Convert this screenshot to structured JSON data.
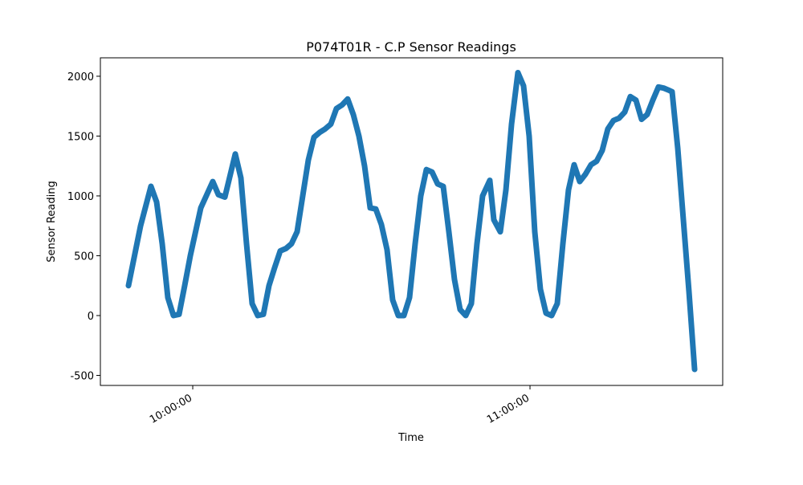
{
  "chart_data": {
    "type": "line",
    "title": "P074T01R - C.P Sensor Readings",
    "x_label": "Time",
    "y_label": "Sensor Reading",
    "x": [
      "09:48:34",
      "09:50:43",
      "09:52:34",
      "09:53:34",
      "09:54:34",
      "09:55:34",
      "09:56:34",
      "09:57:34",
      "09:58:34",
      "09:59:34",
      "10:01:26",
      "10:03:34",
      "10:04:34",
      "10:05:43",
      "10:07:34",
      "10:08:34",
      "10:09:34",
      "10:10:34",
      "10:11:34",
      "10:12:34",
      "10:13:34",
      "10:14:34",
      "10:15:34",
      "10:16:34",
      "10:17:34",
      "10:18:34",
      "10:19:34",
      "10:20:34",
      "10:21:34",
      "10:22:34",
      "10:23:34",
      "10:24:34",
      "10:25:34",
      "10:26:34",
      "10:27:34",
      "10:28:34",
      "10:29:34",
      "10:30:34",
      "10:31:34",
      "10:32:34",
      "10:33:34",
      "10:34:34",
      "10:35:34",
      "10:36:34",
      "10:37:34",
      "10:38:34",
      "10:39:34",
      "10:40:34",
      "10:41:34",
      "10:42:34",
      "10:43:34",
      "10:44:34",
      "10:45:34",
      "10:46:34",
      "10:47:34",
      "10:48:34",
      "10:49:34",
      "10:50:34",
      "10:51:34",
      "10:52:51",
      "10:53:34",
      "10:54:43",
      "10:55:43",
      "10:56:43",
      "10:57:51",
      "10:58:51",
      "10:59:51",
      "11:00:51",
      "11:01:51",
      "11:02:51",
      "11:03:51",
      "11:04:51",
      "11:05:51",
      "11:06:51",
      "11:07:51",
      "11:08:51",
      "11:09:51",
      "11:10:51",
      "11:11:51",
      "11:12:51",
      "11:13:51",
      "11:14:51",
      "11:15:51",
      "11:16:51",
      "11:17:51",
      "11:18:51",
      "11:19:51",
      "11:20:51",
      "11:21:51",
      "11:22:51",
      "11:23:51",
      "11:24:51",
      "11:25:17",
      "11:26:17",
      "11:27:17",
      "11:28:17",
      "11:29:17"
    ],
    "series": [
      {
        "name": "C.P",
        "color": "#1f77b4",
        "values": [
          250,
          750,
          1080,
          950,
          600,
          150,
          0,
          10,
          250,
          500,
          900,
          1120,
          1010,
          990,
          1350,
          1150,
          600,
          100,
          0,
          10,
          250,
          400,
          540,
          560,
          600,
          700,
          1000,
          1300,
          1490,
          1530,
          1560,
          1600,
          1730,
          1760,
          1810,
          1680,
          1500,
          1250,
          900,
          890,
          760,
          550,
          130,
          0,
          0,
          150,
          600,
          1000,
          1220,
          1200,
          1100,
          1080,
          700,
          300,
          50,
          0,
          100,
          600,
          1000,
          1130,
          800,
          700,
          1050,
          1600,
          2030,
          1920,
          1500,
          700,
          220,
          20,
          0,
          100,
          600,
          1050,
          1260,
          1120,
          1180,
          1260,
          1290,
          1380,
          1560,
          1630,
          1650,
          1700,
          1830,
          1800,
          1640,
          1680,
          1800,
          1910,
          1900,
          1880,
          1870,
          1400,
          800,
          200,
          -450
        ]
      }
    ],
    "xlim": [
      "09:43:34",
      "11:34:17"
    ],
    "xticks": [
      "10:00:00",
      "11:00:00"
    ],
    "ylim": [
      -584,
      2154
    ],
    "yticks": [
      -500,
      0,
      500,
      1000,
      1500,
      2000
    ]
  }
}
